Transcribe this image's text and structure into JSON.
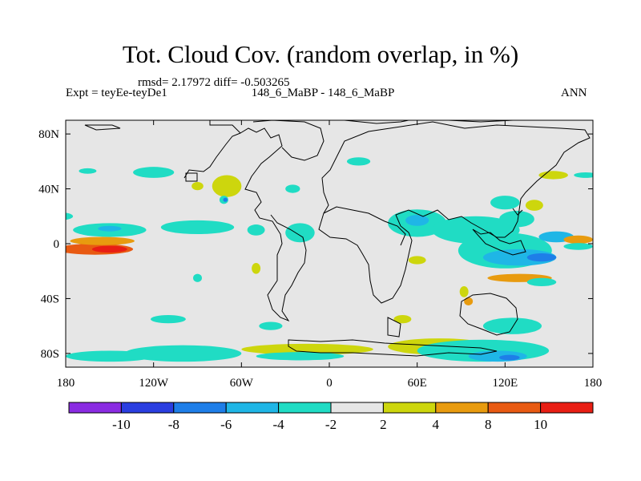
{
  "chart_data": {
    "type": "heatmap",
    "title": "Tot. Cloud Cov. (random overlap, in %)",
    "stats": "rmsd= 2.17972 diff= -0.503265",
    "left_label": "Expt = teyEe-teyDe1",
    "center_label": "148_6_MaBP - 148_6_MaBP",
    "right_label": "ANN",
    "projection": "cylindrical equidistant",
    "xlim": [
      -180,
      180
    ],
    "ylim": [
      -90,
      90
    ],
    "x_ticks": [
      {
        "value": -180,
        "label": "180"
      },
      {
        "value": -120,
        "label": "120W"
      },
      {
        "value": -60,
        "label": "60W"
      },
      {
        "value": 0,
        "label": "0"
      },
      {
        "value": 60,
        "label": "60E"
      },
      {
        "value": 120,
        "label": "120E"
      },
      {
        "value": 180,
        "label": "180"
      }
    ],
    "y_ticks": [
      {
        "value": 80,
        "label": "80N"
      },
      {
        "value": 40,
        "label": "40N"
      },
      {
        "value": 0,
        "label": "0"
      },
      {
        "value": -40,
        "label": "40S"
      },
      {
        "value": -80,
        "label": "80S"
      }
    ],
    "colorbar": {
      "levels": [
        -10,
        -8,
        -6,
        -4,
        -2,
        2,
        4,
        8,
        10
      ],
      "labels": [
        "-10",
        "-8",
        "-6",
        "-4",
        "-2",
        "2",
        "4",
        "8",
        "10"
      ],
      "colors": [
        "#8a2be2",
        "#2a3ee0",
        "#1e7ee8",
        "#1fb6e6",
        "#20dcc4",
        "#e6e6e6",
        "#cdd60d",
        "#e89b0f",
        "#e85a12",
        "#e81e14"
      ]
    },
    "features": [
      {
        "lon": -160,
        "lat": -4,
        "rlon": 26,
        "rlat": 4,
        "value": 9
      },
      {
        "lon": -150,
        "lat": -4,
        "rlon": 12,
        "rlat": 2.5,
        "value": 11
      },
      {
        "lon": -155,
        "lat": 2,
        "rlon": 22,
        "rlat": 3,
        "value": 5
      },
      {
        "lon": -150,
        "lat": 10,
        "rlon": 25,
        "rlat": 5,
        "value": -3
      },
      {
        "lon": -150,
        "lat": 11,
        "rlon": 8,
        "rlat": 2,
        "value": -5
      },
      {
        "lon": -90,
        "lat": 12,
        "rlon": 25,
        "rlat": 5,
        "value": -3
      },
      {
        "lon": -50,
        "lat": 10,
        "rlon": 6,
        "rlat": 4,
        "value": -3
      },
      {
        "lon": -185,
        "lat": 20,
        "rlon": 10,
        "rlat": 3,
        "value": -3
      },
      {
        "lon": -120,
        "lat": 52,
        "rlon": 14,
        "rlat": 4,
        "value": -3
      },
      {
        "lon": -165,
        "lat": 53,
        "rlon": 6,
        "rlat": 2,
        "value": -3
      },
      {
        "lon": -70,
        "lat": 42,
        "rlon": 10,
        "rlat": 8,
        "value": 3
      },
      {
        "lon": -90,
        "lat": 42,
        "rlon": 4,
        "rlat": 3,
        "value": 3
      },
      {
        "lon": -72,
        "lat": 32,
        "rlon": 3,
        "rlat": 3,
        "value": -3
      },
      {
        "lon": -71,
        "lat": 32,
        "rlon": 1.5,
        "rlat": 1.5,
        "value": -7
      },
      {
        "lon": -50,
        "lat": -18,
        "rlon": 3,
        "rlat": 4,
        "value": 3
      },
      {
        "lon": -90,
        "lat": -25,
        "rlon": 3,
        "rlat": 3,
        "value": -3
      },
      {
        "lon": -20,
        "lat": 8,
        "rlon": 10,
        "rlat": 7,
        "value": -3
      },
      {
        "lon": 60,
        "lat": 15,
        "rlon": 20,
        "rlat": 10,
        "value": -3
      },
      {
        "lon": 60,
        "lat": 17,
        "rlon": 8,
        "rlat": 4,
        "value": -5
      },
      {
        "lon": 100,
        "lat": 10,
        "rlon": 30,
        "rlat": 10,
        "value": -3
      },
      {
        "lon": 120,
        "lat": -5,
        "rlon": 32,
        "rlat": 13,
        "value": -3
      },
      {
        "lon": 130,
        "lat": -10,
        "rlon": 25,
        "rlat": 6,
        "value": -5
      },
      {
        "lon": 145,
        "lat": -10,
        "rlon": 10,
        "rlat": 3,
        "value": -7
      },
      {
        "lon": 155,
        "lat": 5,
        "rlon": 12,
        "rlat": 4,
        "value": -5
      },
      {
        "lon": 120,
        "lat": 30,
        "rlon": 10,
        "rlat": 5,
        "value": -3
      },
      {
        "lon": 128,
        "lat": 18,
        "rlon": 12,
        "rlat": 6,
        "value": -3
      },
      {
        "lon": 140,
        "lat": 28,
        "rlon": 6,
        "rlat": 4,
        "value": 3
      },
      {
        "lon": 153,
        "lat": 50,
        "rlon": 10,
        "rlat": 3,
        "value": 3
      },
      {
        "lon": 175,
        "lat": 50,
        "rlon": 8,
        "rlat": 2,
        "value": -3
      },
      {
        "lon": 170,
        "lat": 3,
        "rlon": 10,
        "rlat": 3,
        "value": 5
      },
      {
        "lon": 170,
        "lat": -2,
        "rlon": 10,
        "rlat": 2.5,
        "value": -3
      },
      {
        "lon": 60,
        "lat": -12,
        "rlon": 6,
        "rlat": 3,
        "value": 3
      },
      {
        "lon": 130,
        "lat": -25,
        "rlon": 22,
        "rlat": 3,
        "value": 5
      },
      {
        "lon": 145,
        "lat": -28,
        "rlon": 10,
        "rlat": 3,
        "value": -3
      },
      {
        "lon": 92,
        "lat": -35,
        "rlon": 3,
        "rlat": 4,
        "value": 3
      },
      {
        "lon": 95,
        "lat": -42,
        "rlon": 3,
        "rlat": 3,
        "value": 5
      },
      {
        "lon": 50,
        "lat": -55,
        "rlon": 6,
        "rlat": 3,
        "value": 3
      },
      {
        "lon": 125,
        "lat": -60,
        "rlon": 20,
        "rlat": 6,
        "value": -3
      },
      {
        "lon": 75,
        "lat": -75,
        "rlon": 35,
        "rlat": 6,
        "value": 3
      },
      {
        "lon": 105,
        "lat": -78,
        "rlon": 45,
        "rlat": 8,
        "value": -3
      },
      {
        "lon": 115,
        "lat": -82,
        "rlon": 20,
        "rlat": 4,
        "value": -5
      },
      {
        "lon": 123,
        "lat": -83,
        "rlon": 7,
        "rlat": 2,
        "value": -7
      },
      {
        "lon": -15,
        "lat": -77,
        "rlon": 45,
        "rlat": 4,
        "value": 3
      },
      {
        "lon": -100,
        "lat": -80,
        "rlon": 40,
        "rlat": 6,
        "value": -3
      },
      {
        "lon": -150,
        "lat": -82,
        "rlon": 30,
        "rlat": 4,
        "value": -3
      },
      {
        "lon": -20,
        "lat": -82,
        "rlon": 30,
        "rlat": 3,
        "value": -3
      },
      {
        "lon": -110,
        "lat": -55,
        "rlon": 12,
        "rlat": 3,
        "value": -3
      },
      {
        "lon": -40,
        "lat": -60,
        "rlon": 8,
        "rlat": 3,
        "value": -3
      },
      {
        "lon": 20,
        "lat": 60,
        "rlon": 8,
        "rlat": 3,
        "value": -3
      },
      {
        "lon": -25,
        "lat": 40,
        "rlon": 5,
        "rlat": 3,
        "value": -3
      }
    ]
  }
}
